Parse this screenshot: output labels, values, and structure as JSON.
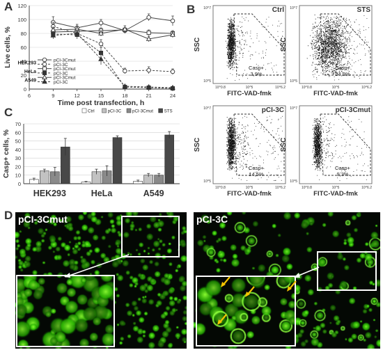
{
  "panels": {
    "a": "A",
    "b": "B",
    "c": "C",
    "d": "D"
  },
  "chart_data": [
    {
      "id": "A",
      "type": "line",
      "xlabel": "Time post transfection, h",
      "ylabel": "Live cells, %",
      "xlim": [
        6,
        24
      ],
      "ylim": [
        0,
        120
      ],
      "x": [
        9,
        12,
        15,
        18,
        21,
        24
      ],
      "xticks": [
        "6",
        "9",
        "12",
        "15",
        "18",
        "21",
        "24"
      ],
      "yticks": [
        "0",
        "20",
        "40",
        "60",
        "80",
        "100",
        "120"
      ],
      "legend_groups": [
        "HEK293",
        "HeLa",
        "A549"
      ],
      "series": [
        {
          "name": "pCI-3Cmut",
          "group": "HEK293",
          "marker": "circle",
          "fill": "open",
          "dash": false,
          "values": [
            96,
            88,
            95,
            84,
            103,
            98
          ],
          "err": [
            8,
            5,
            5,
            4,
            5,
            7
          ]
        },
        {
          "name": "pCI-3C",
          "group": "HEK293",
          "marker": "circle",
          "fill": "open",
          "dash": true,
          "values": [
            90,
            80,
            65,
            26,
            27,
            25
          ],
          "err": [
            6,
            5,
            6,
            4,
            5,
            4
          ]
        },
        {
          "name": "pCI-3Cmut",
          "group": "HeLa",
          "marker": "square",
          "fill": "open",
          "dash": false,
          "values": [
            82,
            83,
            84,
            85,
            81,
            80
          ],
          "err": [
            5,
            4,
            4,
            3,
            4,
            4
          ]
        },
        {
          "name": "pCI-3C",
          "group": "HeLa",
          "marker": "square",
          "fill": "filled",
          "dash": true,
          "values": [
            79,
            78,
            52,
            3,
            2,
            1
          ],
          "err": [
            5,
            6,
            8,
            1,
            1,
            1
          ]
        },
        {
          "name": "pCI-3Cmut",
          "group": "A549",
          "marker": "triangle",
          "fill": "open",
          "dash": false,
          "values": [
            85,
            86,
            80,
            86,
            72,
            78
          ],
          "err": [
            4,
            4,
            4,
            5,
            4,
            4
          ]
        },
        {
          "name": "pCI-3C",
          "group": "A549",
          "marker": "triangle",
          "fill": "filled",
          "dash": true,
          "values": [
            77,
            80,
            43,
            4,
            3,
            2
          ],
          "err": [
            5,
            5,
            8,
            1,
            1,
            1
          ]
        }
      ]
    },
    {
      "id": "C",
      "type": "bar",
      "ylabel": "Casp+ cells, %",
      "ylim": [
        0,
        70
      ],
      "yticks": [
        "0",
        "10",
        "20",
        "30",
        "40",
        "50",
        "60",
        "70"
      ],
      "categories": [
        "HEK293",
        "HeLa",
        "A549"
      ],
      "series": [
        {
          "name": "Ctrl",
          "color": "#ffffff",
          "values": [
            5,
            2,
            3
          ],
          "err": [
            1.5,
            0.7,
            1.2
          ]
        },
        {
          "name": "pCI-3C",
          "color": "#c2c2c2",
          "values": [
            15,
            14,
            10
          ],
          "err": [
            2,
            3,
            2
          ]
        },
        {
          "name": "pCI-3Cmut",
          "color": "#8a8a8a",
          "values": [
            14,
            15,
            10
          ],
          "err": [
            5,
            6,
            2
          ]
        },
        {
          "name": "STS",
          "color": "#484848",
          "values": [
            43,
            54,
            57
          ],
          "err": [
            10,
            2,
            4
          ]
        }
      ]
    },
    {
      "id": "B",
      "type": "scatter",
      "xlabel": "FITC-VAD-fmk",
      "ylabel": "SSC",
      "gate_label": "Casp+",
      "x_axis_labels": [
        "10^0.8",
        "10^5",
        "10^6.2"
      ],
      "y_axis_labels": [
        "10^7",
        "10^5"
      ],
      "plots": [
        {
          "title": "Ctrl",
          "value": "3,9%",
          "density": "low"
        },
        {
          "title": "STS",
          "value": "54,9%",
          "density": "high"
        },
        {
          "title": "pCI-3C",
          "value": "14,5%",
          "density": "medium"
        },
        {
          "title": "pCI-3Cmut",
          "value": "9,3%",
          "density": "low"
        }
      ]
    }
  ],
  "micrographs": {
    "left_title": "pCI-3Cmut",
    "right_title": "pCI-3C"
  },
  "colors": {
    "fluor": "#39d600",
    "arrow": "#f5c400"
  }
}
